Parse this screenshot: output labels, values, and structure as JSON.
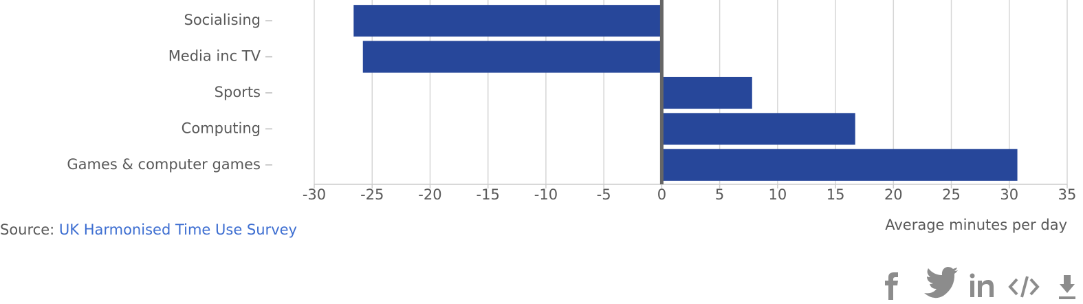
{
  "chart_data": {
    "type": "hbar",
    "categories": [
      "Socialising",
      "Media inc TV",
      "Sports",
      "Computing",
      "Games & computer games"
    ],
    "values": [
      -26.6,
      -25.8,
      7.8,
      16.7,
      30.7
    ],
    "color": "#27479a",
    "xlim": [
      -30,
      35
    ],
    "xticks": [
      -30,
      -25,
      -20,
      -15,
      -10,
      -5,
      0,
      5,
      10,
      15,
      20,
      25,
      30,
      35
    ],
    "grid": true,
    "x_label": "Average minutes per day",
    "source": {
      "label": "Source:",
      "link": "UK Harmonised Time Use Survey"
    }
  }
}
